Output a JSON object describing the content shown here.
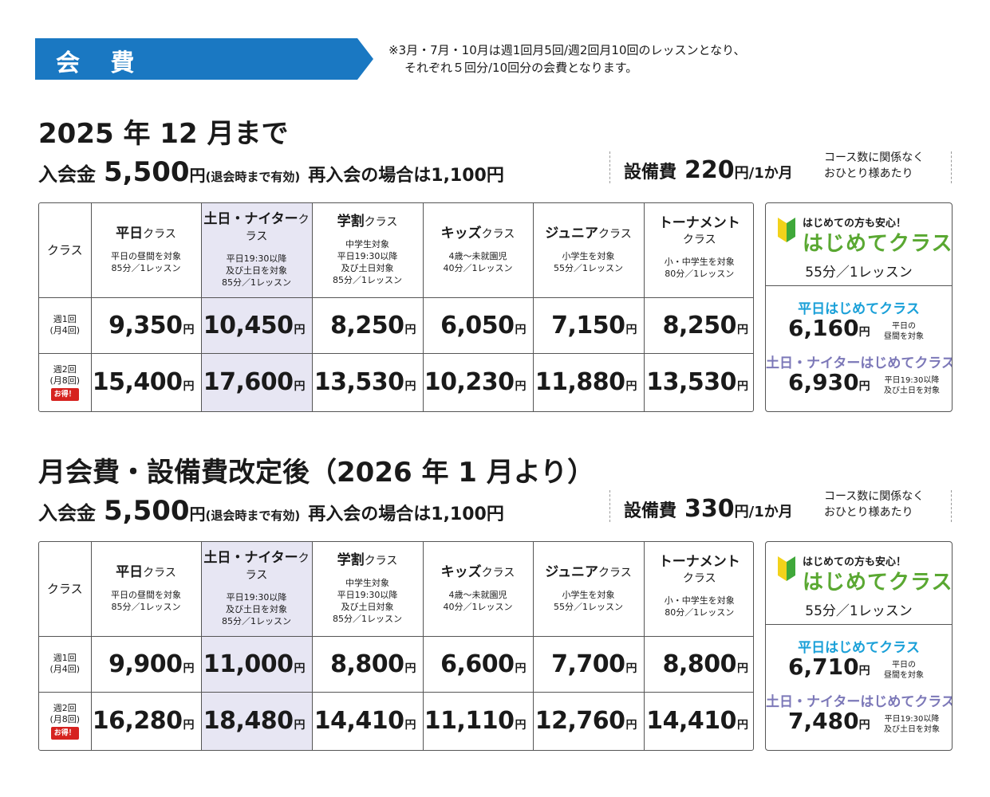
{
  "header": {
    "title": "会 費",
    "note_line1": "※3月・7月・10月は週1回月5回/週2回月10回のレッスンとなり、",
    "note_line2": "それぞれ５回分/10回分の会費となります。"
  },
  "colors": {
    "banner": "#1a78c2",
    "highlight": "#e7e6f3",
    "green": "#5aa832",
    "blue": "#1aa0d8",
    "purple": "#7c78b8",
    "otoku": "#d6221f"
  },
  "common": {
    "class_label": "クラス",
    "weekly1_line1": "週1回",
    "weekly1_line2": "(月4回)",
    "weekly2_line1": "週2回",
    "weekly2_line2": "(月8回)",
    "otoku": "お得！",
    "yen": "円",
    "admission_label": "入会金",
    "admission_price": "5,500",
    "admission_note": "(退会時まで有効)",
    "readmission": "再入会の場合は1,100円",
    "equipment_label": "設備費",
    "equipment_per": "/1か月",
    "equipment_note_line1": "コース数に関係なく",
    "equipment_note_line2": "おひとり様あたり",
    "classes": [
      {
        "name": "平日",
        "suffix": "クラス",
        "desc1": "平日の昼間を対象",
        "desc2": "85分／1レッスン",
        "desc3": "",
        "desc4": ""
      },
      {
        "name": "土日・ナイター",
        "suffix": "クラス",
        "desc1": "平日19:30以降",
        "desc2": "及び土日を対象",
        "desc3": "85分／1レッスン",
        "desc4": ""
      },
      {
        "name": "学割",
        "suffix": "クラス",
        "desc1": "中学生対象",
        "desc2": "平日19:30以降",
        "desc3": "及び土日対象",
        "desc4": "85分／1レッスン"
      },
      {
        "name": "キッズ",
        "suffix": "クラス",
        "desc1": "4歳～未就園児",
        "desc2": "40分／1レッスン",
        "desc3": "",
        "desc4": ""
      },
      {
        "name": "ジュニア",
        "suffix": "クラス",
        "desc1": "小学生を対象",
        "desc2": "55分／1レッスン",
        "desc3": "",
        "desc4": ""
      },
      {
        "name": "トーナメント",
        "suffix": "クラス",
        "desc1": "小・中学生を対象",
        "desc2": "80分／1レッスン",
        "desc3": "",
        "desc4": ""
      }
    ],
    "beginner": {
      "tag": "はじめての方も安心！",
      "title": "はじめてクラス",
      "duration": "55分／1レッスン",
      "weekday_name": "平日はじめてクラス",
      "weekday_note1": "平日の",
      "weekday_note2": "昼間を対象",
      "weekend_name": "土日・ナイターはじめてクラス",
      "weekend_note1": "平日19:30以降",
      "weekend_note2": "及び土日を対象"
    }
  },
  "sections": [
    {
      "title": "2025 年 12 月まで",
      "equipment_price": "220",
      "weekly1": [
        "9,350",
        "10,450",
        "8,250",
        "6,050",
        "7,150",
        "8,250"
      ],
      "weekly2": [
        "15,400",
        "17,600",
        "13,530",
        "10,230",
        "11,880",
        "13,530"
      ],
      "beginner_weekday_price": "6,160",
      "beginner_weekend_price": "6,930"
    },
    {
      "title": "月会費・設備費改定後（2026 年 1 月より）",
      "equipment_price": "330",
      "weekly1": [
        "9,900",
        "11,000",
        "8,800",
        "6,600",
        "7,700",
        "8,800"
      ],
      "weekly2": [
        "16,280",
        "18,480",
        "14,410",
        "11,110",
        "12,760",
        "14,410"
      ],
      "beginner_weekday_price": "6,710",
      "beginner_weekend_price": "7,480"
    }
  ]
}
